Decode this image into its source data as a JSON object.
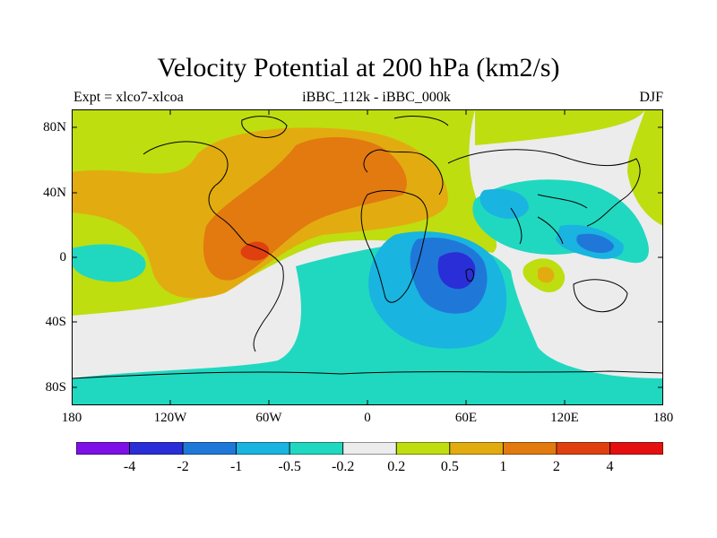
{
  "title": "Velocity Potential at 200 hPa (km2/s)",
  "left_label": "Expt = xlco7-xlcoa",
  "center_label": "iBBC_112k - iBBC_000k",
  "right_label": "DJF",
  "lat_ticks": [
    "80N",
    "40N",
    "0",
    "40S",
    "80S"
  ],
  "lon_ticks": [
    "180",
    "120W",
    "60W",
    "0",
    "60E",
    "120E",
    "180"
  ],
  "colorbar": {
    "labels": [
      "-4",
      "-2",
      "-1",
      "-0.5",
      "-0.2",
      "0.2",
      "0.5",
      "1",
      "2",
      "4"
    ],
    "colors": [
      "#7d10e6",
      "#2a2ed6",
      "#1f78d8",
      "#19b4e0",
      "#20d8c0",
      "#ececec",
      "#bede10",
      "#e2ac10",
      "#e27a10",
      "#e04010",
      "#e41010"
    ]
  },
  "field_colors": {
    "ocean_gray": "#ececec",
    "lime": "#bede10",
    "yellow_orange": "#e2ac10",
    "orange": "#e27a10",
    "red_orange": "#e04010",
    "teal": "#20d8c0",
    "cyan": "#19b4e0",
    "blue": "#1f78d8",
    "deep_blue": "#2a2ed6"
  }
}
